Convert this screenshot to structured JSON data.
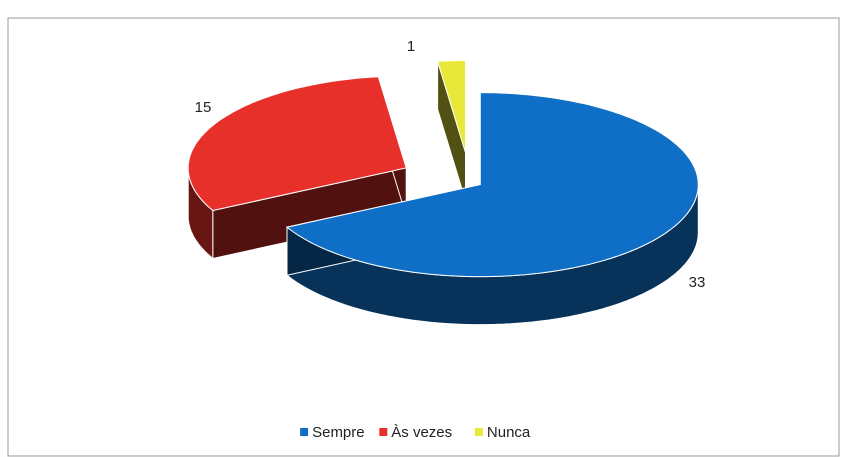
{
  "chart_data": {
    "type": "pie",
    "three_d": true,
    "categories": [
      "Sempre",
      "Às vezes",
      "Nunca"
    ],
    "values": [
      33,
      15,
      1
    ],
    "colors": [
      "#0f6fc6",
      "#e8302a",
      "#e8e83a"
    ],
    "legend": "bottom"
  }
}
